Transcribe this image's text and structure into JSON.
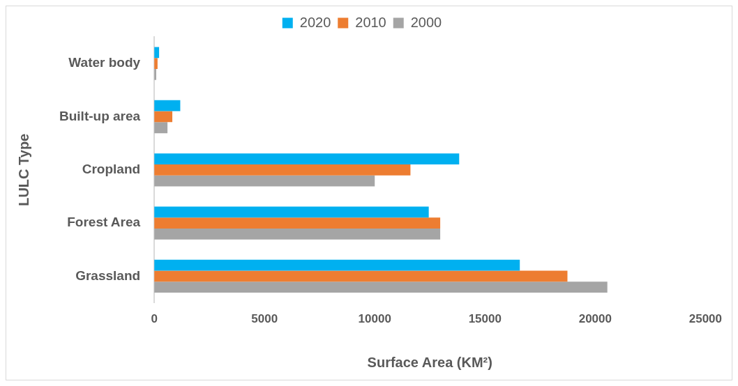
{
  "chart_data": {
    "type": "bar",
    "orientation": "horizontal",
    "xlabel": "Surface Area (KM²)",
    "ylabel": "LULC Type",
    "categories": [
      "Water body",
      "Built-up area",
      "Cropland",
      "Forest Area",
      "Grassland"
    ],
    "series": [
      {
        "name": "2020",
        "color": "#00b0f0",
        "values": [
          220,
          1180,
          13830,
          12450,
          16580
        ]
      },
      {
        "name": "2010",
        "color": "#ed7d31",
        "values": [
          150,
          820,
          11620,
          12970,
          18740
        ]
      },
      {
        "name": "2000",
        "color": "#a5a5a5",
        "values": [
          90,
          600,
          10000,
          12970,
          20550
        ]
      }
    ],
    "xlim": [
      0,
      25000
    ],
    "xticks": [
      0,
      5000,
      10000,
      15000,
      20000,
      25000
    ],
    "grid": false,
    "legend": "top"
  }
}
